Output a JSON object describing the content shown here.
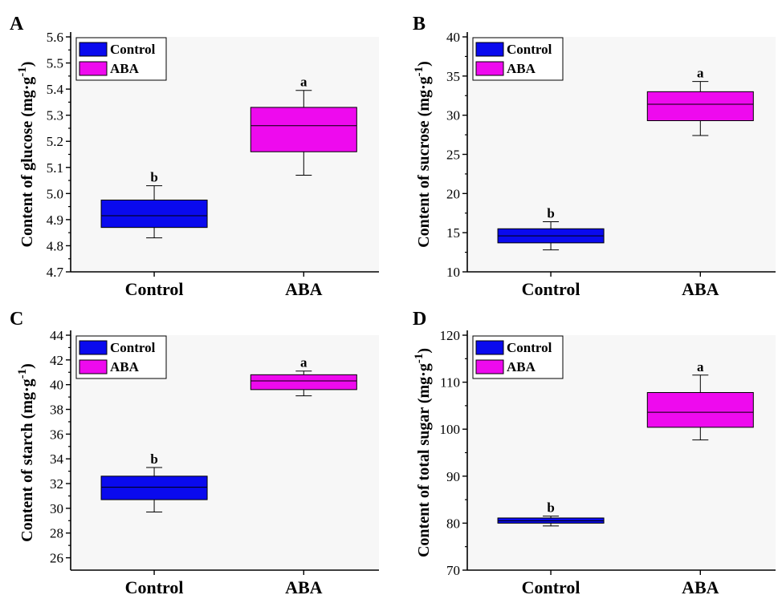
{
  "colors": {
    "control_fill": "#0a0aee",
    "aba_fill": "#ee0aee",
    "plot_bg": "#f7f7f7",
    "axis": "#000000"
  },
  "chart_data": [
    {
      "panel": "A",
      "type": "box",
      "ylabel_main": "Content of glucose (mg·g",
      "ylabel_sup": "-1",
      "ylabel_close": ")",
      "categories": [
        "Control",
        "ABA"
      ],
      "ylim": [
        4.7,
        5.6
      ],
      "yticks": [
        4.7,
        4.8,
        4.9,
        5.0,
        5.1,
        5.2,
        5.3,
        5.4,
        5.5,
        5.6
      ],
      "ytick_labels": [
        "4.7",
        "4.8",
        "4.9",
        "5.0",
        "5.1",
        "5.2",
        "5.3",
        "5.4",
        "5.5",
        "5.6"
      ],
      "legend": [
        "Control",
        "ABA"
      ],
      "legend_position": "top-left",
      "series": [
        {
          "name": "Control",
          "whisker_low": 4.83,
          "q1": 4.87,
          "median": 4.915,
          "q3": 4.975,
          "whisker_high": 5.03,
          "letter": "b"
        },
        {
          "name": "ABA",
          "whisker_low": 5.07,
          "q1": 5.16,
          "median": 5.26,
          "q3": 5.33,
          "whisker_high": 5.395,
          "letter": "a"
        }
      ]
    },
    {
      "panel": "B",
      "type": "box",
      "ylabel_main": "Content of sucrose (mg·g",
      "ylabel_sup": "-1",
      "ylabel_close": ")",
      "categories": [
        "Control",
        "ABA"
      ],
      "ylim": [
        10,
        40
      ],
      "yticks": [
        10,
        15,
        20,
        25,
        30,
        35,
        40
      ],
      "ytick_labels": [
        "10",
        "15",
        "20",
        "25",
        "30",
        "35",
        "40"
      ],
      "legend": [
        "Control",
        "ABA"
      ],
      "legend_position": "top-left",
      "series": [
        {
          "name": "Control",
          "whisker_low": 12.8,
          "q1": 13.7,
          "median": 14.6,
          "q3": 15.5,
          "whisker_high": 16.4,
          "letter": "b"
        },
        {
          "name": "ABA",
          "whisker_low": 27.4,
          "q1": 29.3,
          "median": 31.4,
          "q3": 33.0,
          "whisker_high": 34.3,
          "letter": "a"
        }
      ]
    },
    {
      "panel": "C",
      "type": "box",
      "ylabel_main": "Content of starch (mg·g",
      "ylabel_sup": "-1",
      "ylabel_close": ")",
      "categories": [
        "Control",
        "ABA"
      ],
      "ylim": [
        25,
        44
      ],
      "yticks": [
        26,
        28,
        30,
        32,
        34,
        36,
        38,
        40,
        42,
        44
      ],
      "ytick_labels": [
        "26",
        "28",
        "30",
        "32",
        "34",
        "36",
        "38",
        "40",
        "42",
        "44"
      ],
      "legend": [
        "Control",
        "ABA"
      ],
      "legend_position": "top-left",
      "series": [
        {
          "name": "Control",
          "whisker_low": 29.7,
          "q1": 30.7,
          "median": 31.7,
          "q3": 32.6,
          "whisker_high": 33.3,
          "letter": "b"
        },
        {
          "name": "ABA",
          "whisker_low": 39.1,
          "q1": 39.6,
          "median": 40.3,
          "q3": 40.8,
          "whisker_high": 41.1,
          "letter": "a"
        }
      ]
    },
    {
      "panel": "D",
      "type": "box",
      "ylabel_main": "Content of total sugar (mg·g",
      "ylabel_sup": "-1",
      "ylabel_close": ")",
      "categories": [
        "Control",
        "ABA"
      ],
      "ylim": [
        70,
        120
      ],
      "yticks": [
        70,
        80,
        90,
        100,
        110,
        120
      ],
      "ytick_labels": [
        "70",
        "80",
        "90",
        "100",
        "110",
        "120"
      ],
      "legend": [
        "Control",
        "ABA"
      ],
      "legend_position": "top-left",
      "series": [
        {
          "name": "Control",
          "whisker_low": 79.4,
          "q1": 80.0,
          "median": 80.5,
          "q3": 81.1,
          "whisker_high": 81.5,
          "letter": "b"
        },
        {
          "name": "ABA",
          "whisker_low": 97.7,
          "q1": 100.4,
          "median": 103.6,
          "q3": 107.8,
          "whisker_high": 111.5,
          "letter": "a"
        }
      ]
    }
  ]
}
